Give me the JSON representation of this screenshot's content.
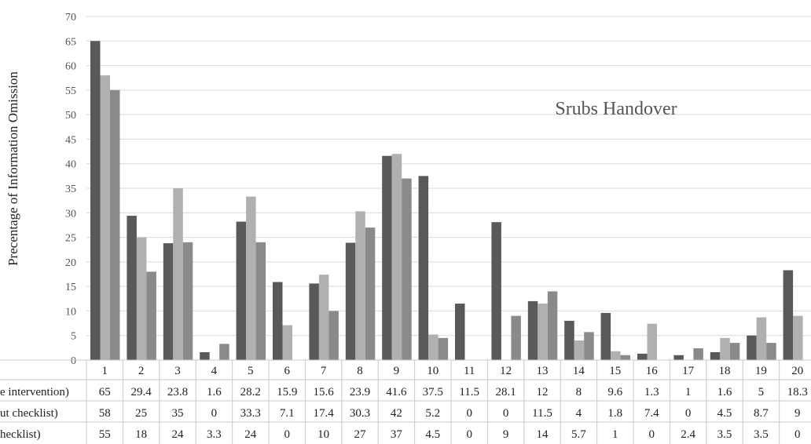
{
  "chart_data": {
    "type": "bar",
    "title": "Srubs Handover",
    "ylabel": "Precentage of  Information Omission",
    "xlabel": "",
    "ylim": [
      0,
      70
    ],
    "yticks": [
      0,
      5,
      10,
      15,
      20,
      25,
      30,
      35,
      40,
      45,
      50,
      55,
      60,
      65,
      70
    ],
    "grid": true,
    "legend": "data table below x-axis",
    "categories": [
      "1",
      "2",
      "3",
      "4",
      "5",
      "6",
      "7",
      "8",
      "9",
      "10",
      "11",
      "12",
      "13",
      "14",
      "15",
      "16",
      "17",
      "18",
      "19",
      "20"
    ],
    "series": [
      {
        "name": "e intervention)",
        "color": "#595959",
        "values": [
          65,
          29.4,
          23.8,
          1.6,
          28.2,
          15.9,
          15.6,
          23.9,
          41.6,
          37.5,
          11.5,
          28.1,
          12,
          8,
          9.6,
          1.3,
          1,
          1.6,
          5,
          18.3
        ]
      },
      {
        "name": "ut checklist)",
        "color": "#b0b0b0",
        "values": [
          58,
          25,
          35,
          0,
          33.3,
          7.1,
          17.4,
          30.3,
          42,
          5.2,
          0,
          0,
          11.5,
          4,
          1.8,
          7.4,
          0,
          4.5,
          8.7,
          9
        ]
      },
      {
        "name": "hecklist)",
        "color": "#8a8a8a",
        "values": [
          55,
          18,
          24,
          3.3,
          24,
          0,
          10,
          27,
          37,
          4.5,
          0,
          9,
          14,
          5.7,
          1,
          0,
          2.4,
          3.5,
          3.5,
          0
        ]
      }
    ]
  }
}
